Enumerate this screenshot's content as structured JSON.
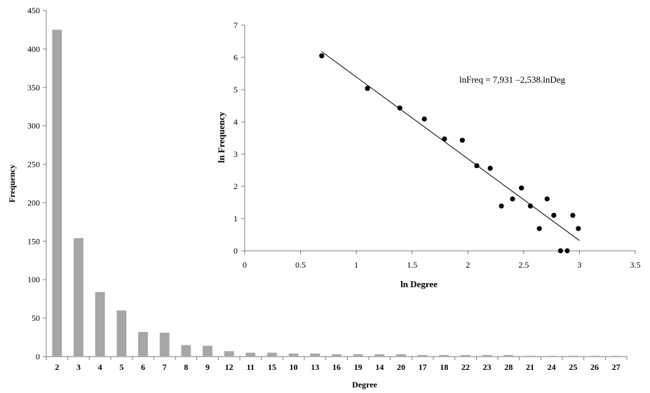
{
  "chart_data": [
    {
      "type": "bar",
      "title": "",
      "xlabel": "Degree",
      "ylabel": "Frequency",
      "categories": [
        "2",
        "3",
        "4",
        "5",
        "6",
        "7",
        "8",
        "9",
        "12",
        "11",
        "15",
        "10",
        "13",
        "16",
        "19",
        "14",
        "20",
        "17",
        "18",
        "22",
        "23",
        "28",
        "21",
        "24",
        "25",
        "26",
        "27"
      ],
      "values": [
        425,
        154,
        84,
        60,
        32,
        31,
        15,
        14,
        7,
        5,
        5,
        4,
        4,
        3,
        3,
        3,
        3,
        2,
        2,
        2,
        2,
        2,
        1,
        1,
        1,
        1,
        1
      ],
      "ylim": [
        0,
        450
      ],
      "yticks": [
        "0",
        "50",
        "100",
        "150",
        "200",
        "250",
        "300",
        "350",
        "400",
        "450"
      ],
      "grid": false,
      "bar_color": "#a6a6a6"
    },
    {
      "type": "scatter",
      "title": "",
      "xlabel": "ln Degree",
      "ylabel": "ln Frequency",
      "xlim": [
        0,
        3.5
      ],
      "ylim": [
        0,
        7
      ],
      "xticks": [
        "0",
        "0.5",
        "1",
        "1.5",
        "2",
        "2.5",
        "3",
        "3.5"
      ],
      "yticks": [
        "0",
        "1",
        "2",
        "3",
        "4",
        "5",
        "6",
        "7"
      ],
      "points": [
        [
          0.69,
          6.05
        ],
        [
          1.1,
          5.04
        ],
        [
          1.39,
          4.43
        ],
        [
          1.61,
          4.09
        ],
        [
          1.79,
          3.47
        ],
        [
          1.95,
          3.43
        ],
        [
          2.08,
          2.64
        ],
        [
          2.2,
          2.56
        ],
        [
          2.3,
          1.39
        ],
        [
          2.4,
          1.61
        ],
        [
          2.48,
          1.95
        ],
        [
          2.56,
          1.39
        ],
        [
          2.64,
          0.69
        ],
        [
          2.71,
          1.61
        ],
        [
          2.77,
          1.1
        ],
        [
          2.83,
          0.0
        ],
        [
          2.89,
          0.0
        ],
        [
          2.94,
          1.1
        ],
        [
          2.99,
          0.69
        ]
      ],
      "fit": {
        "intercept": 7.931,
        "slope": -2.538,
        "x_range": [
          0.69,
          3.0
        ]
      },
      "annotation": "lnFreq = 7,931 –2,538.lnDeg",
      "grid": false,
      "point_color": "#000000"
    }
  ]
}
